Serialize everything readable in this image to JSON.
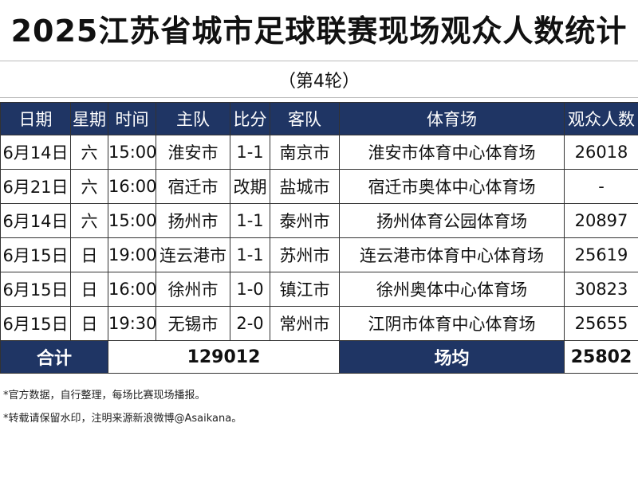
{
  "title": "2025江苏省城市足球联赛现场观众人数统计",
  "subtitle": "（第4轮）",
  "table": {
    "headers": [
      "日期",
      "星期",
      "时间",
      "主队",
      "比分",
      "客队",
      "体育场",
      "观众人数"
    ],
    "rows": [
      [
        "6月14日",
        "六",
        "15:00",
        "淮安市",
        "1-1",
        "南京市",
        "淮安市体育中心体育场",
        "26018"
      ],
      [
        "6月21日",
        "六",
        "16:00",
        "宿迁市",
        "改期",
        "盐城市",
        "宿迁市奥体中心体育场",
        "-"
      ],
      [
        "6月14日",
        "六",
        "15:00",
        "扬州市",
        "1-1",
        "泰州市",
        "扬州体育公园体育场",
        "20897"
      ],
      [
        "6月15日",
        "日",
        "19:00",
        "连云港市",
        "1-1",
        "苏州市",
        "连云港市体育中心体育场",
        "25619"
      ],
      [
        "6月15日",
        "日",
        "16:00",
        "徐州市",
        "1-0",
        "镇江市",
        "徐州奥体中心体育场",
        "30823"
      ],
      [
        "6月15日",
        "日",
        "19:30",
        "无锡市",
        "2-0",
        "常州市",
        "江阴市体育中心体育场",
        "25655"
      ]
    ],
    "total_label": "合计",
    "total_value": "129012",
    "avg_label": "场均",
    "avg_value": "25802"
  },
  "notes": [
    "*官方数据，自行整理，每场比赛现场播报。",
    "*转载请保留水印，注明来源新浪微博@Asaikana。"
  ],
  "colors": {
    "header_bg": "#1f3564"
  }
}
